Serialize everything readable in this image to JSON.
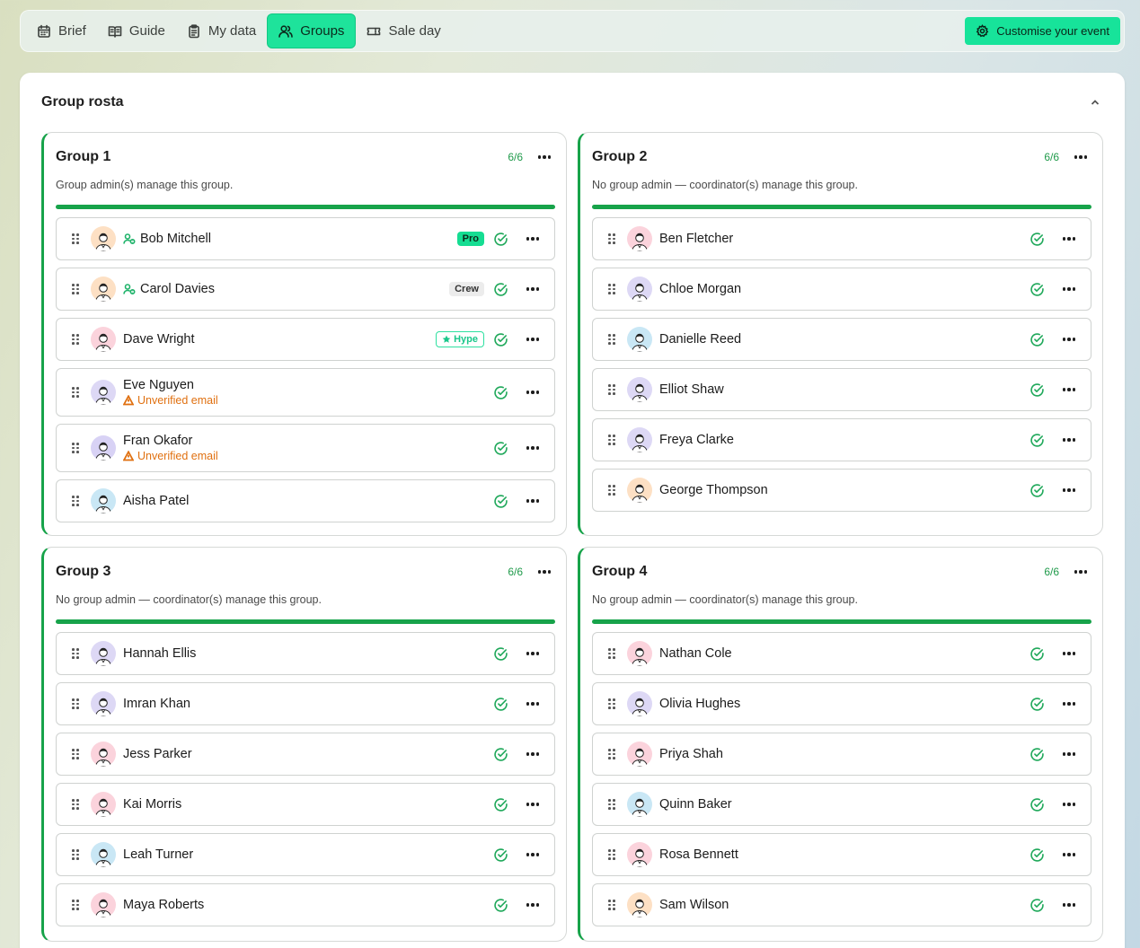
{
  "nav": {
    "tabs": [
      {
        "label": "Brief",
        "icon": "calendar-icon"
      },
      {
        "label": "Guide",
        "icon": "book-icon"
      },
      {
        "label": "My data",
        "icon": "clipboard-icon"
      },
      {
        "label": "Groups",
        "icon": "users-icon",
        "active": true
      },
      {
        "label": "Sale day",
        "icon": "ticket-icon"
      }
    ],
    "customise_label": "Customise your event"
  },
  "panel": {
    "title": "Group rosta"
  },
  "colors": {
    "accent": "#1ee39b",
    "group_bar": "#17a34a",
    "check": "#1fa85a",
    "warning": "#e07010"
  },
  "groups": [
    {
      "title": "Group 1",
      "count": "6/6",
      "description": "Group admin(s) manage this group.",
      "members": [
        {
          "name": "Bob Mitchell",
          "admin": true,
          "badge": "Pro",
          "avatar_bg": "#fde0c4"
        },
        {
          "name": "Carol Davies",
          "admin": true,
          "badge": "Crew",
          "avatar_bg": "#fde0c4"
        },
        {
          "name": "Dave Wright",
          "badge": "Hype",
          "avatar_bg": "#fbd3dc"
        },
        {
          "name": "Eve Nguyen",
          "warning": "Unverified email",
          "avatar_bg": "#ddd8f5"
        },
        {
          "name": "Fran Okafor",
          "warning": "Unverified email",
          "avatar_bg": "#d8d2f5"
        },
        {
          "name": "Aisha Patel",
          "avatar_bg": "#c9e7f5"
        }
      ]
    },
    {
      "title": "Group 2",
      "count": "6/6",
      "description": "No group admin — coordinator(s) manage this group.",
      "members": [
        {
          "name": "Ben Fletcher",
          "avatar_bg": "#fbd3dc"
        },
        {
          "name": "Chloe Morgan",
          "avatar_bg": "#ddd8f5"
        },
        {
          "name": "Danielle Reed",
          "avatar_bg": "#c9e7f5"
        },
        {
          "name": "Elliot Shaw",
          "avatar_bg": "#ddd8f5"
        },
        {
          "name": "Freya Clarke",
          "avatar_bg": "#ddd8f5"
        },
        {
          "name": "George Thompson",
          "avatar_bg": "#fde0c4"
        }
      ]
    },
    {
      "title": "Group 3",
      "count": "6/6",
      "description": "No group admin — coordinator(s) manage this group.",
      "members": [
        {
          "name": "Hannah Ellis",
          "avatar_bg": "#ddd8f5"
        },
        {
          "name": "Imran Khan",
          "avatar_bg": "#ddd8f5"
        },
        {
          "name": "Jess Parker",
          "avatar_bg": "#fbd3dc"
        },
        {
          "name": "Kai Morris",
          "avatar_bg": "#fbd3dc"
        },
        {
          "name": "Leah Turner",
          "avatar_bg": "#c9e7f5"
        },
        {
          "name": "Maya Roberts",
          "avatar_bg": "#fbd3dc"
        }
      ]
    },
    {
      "title": "Group 4",
      "count": "6/6",
      "description": "No group admin — coordinator(s) manage this group.",
      "members": [
        {
          "name": "Nathan Cole",
          "avatar_bg": "#fbd3dc"
        },
        {
          "name": "Olivia Hughes",
          "avatar_bg": "#ddd8f5"
        },
        {
          "name": "Priya Shah",
          "avatar_bg": "#fbd3dc"
        },
        {
          "name": "Quinn Baker",
          "avatar_bg": "#c9e7f5"
        },
        {
          "name": "Rosa Bennett",
          "avatar_bg": "#fbd3dc"
        },
        {
          "name": "Sam Wilson",
          "avatar_bg": "#fde0c4"
        }
      ]
    }
  ]
}
